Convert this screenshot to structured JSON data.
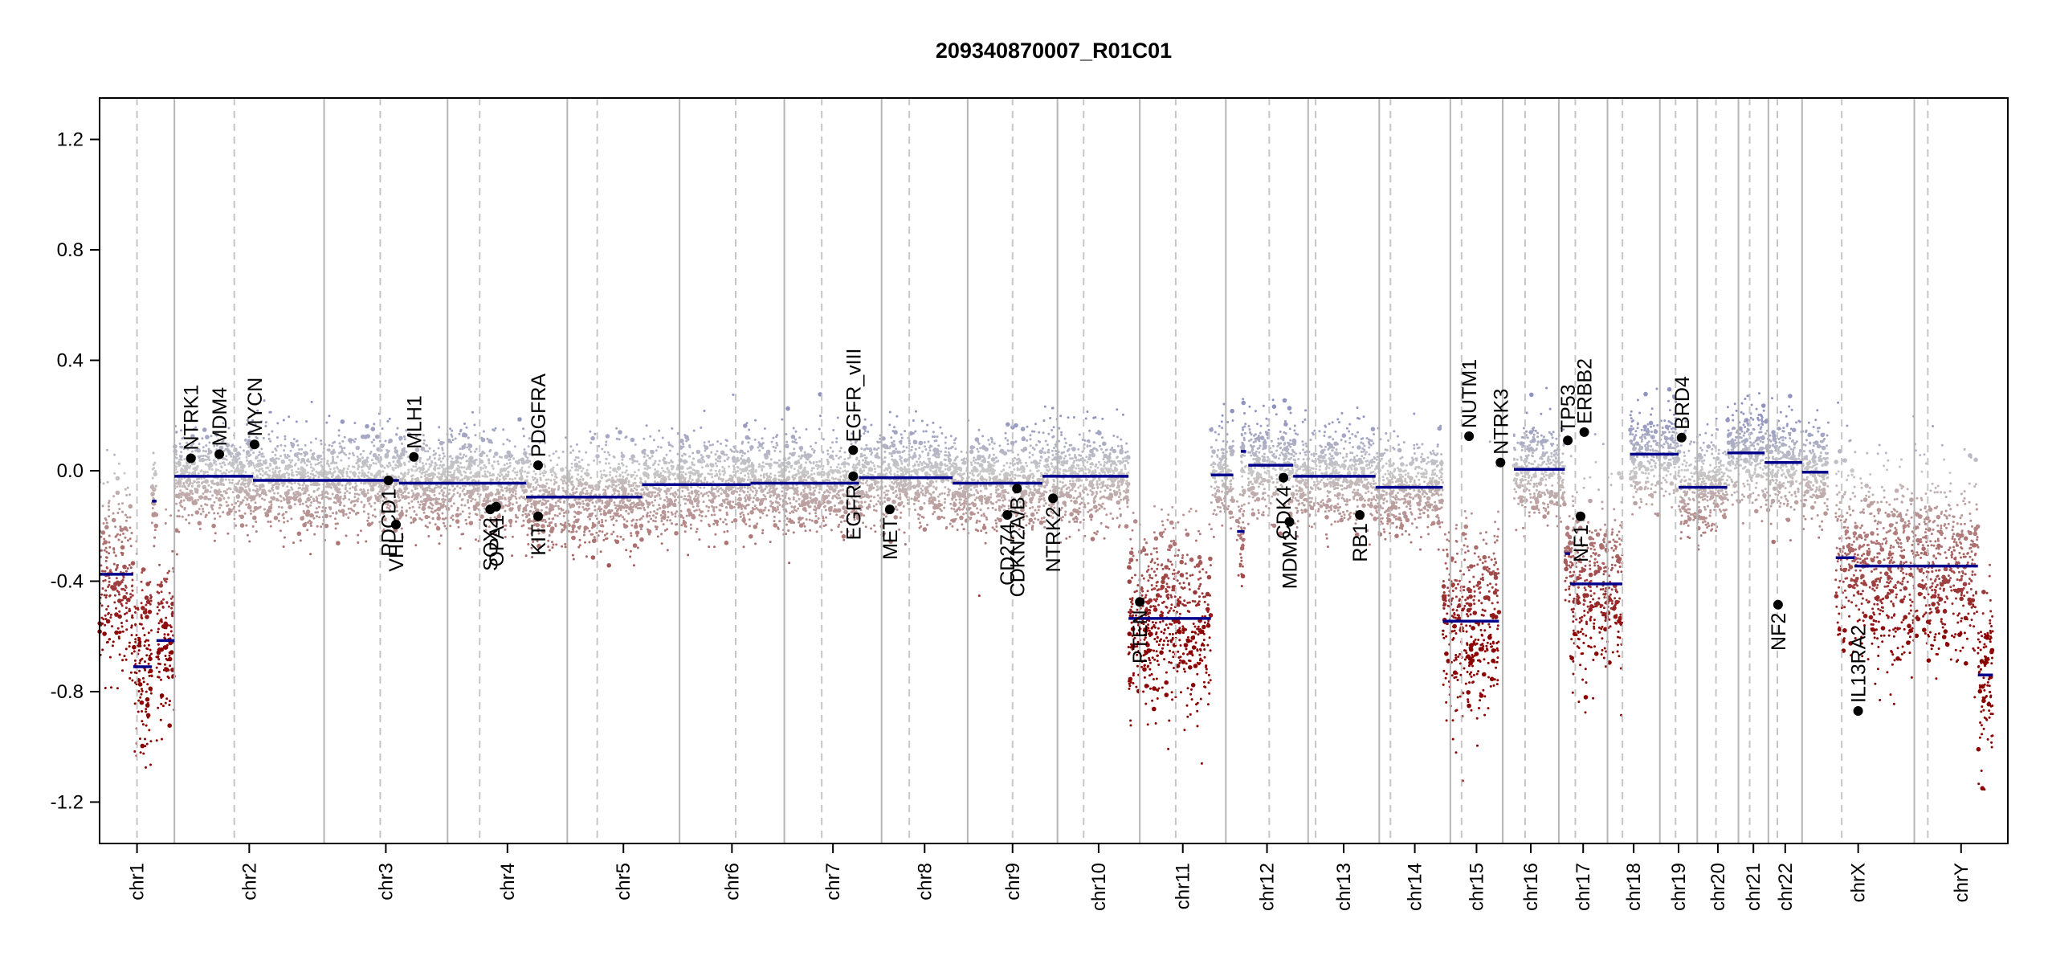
{
  "chart_data": {
    "type": "scatter",
    "title": "209340870007_R01C01",
    "xlabel": "",
    "ylabel": "",
    "ylim": [
      -1.35,
      1.35
    ],
    "yticks": [
      {
        "value": 1.2,
        "label": "1.2"
      },
      {
        "value": 0.8,
        "label": "0.8"
      },
      {
        "value": 0.4,
        "label": "0.4"
      },
      {
        "value": 0.0,
        "label": "0.0"
      },
      {
        "value": -0.4,
        "label": "-0.4"
      },
      {
        "value": -0.8,
        "label": "-0.8"
      },
      {
        "value": -1.2,
        "label": "-1.2"
      }
    ],
    "grid": false,
    "colors": {
      "segment": "#00008b",
      "gain": "#8f93c0",
      "neutral": "#c8c8c8",
      "loss": "#8b0000",
      "gene_point": "#000000",
      "chromosome_boundary": "#b5b5b5",
      "centromere": "#c6c6c6"
    },
    "chromosomes": [
      {
        "name": "chr1",
        "start": 0,
        "end": 10,
        "centromere": 5.0
      },
      {
        "name": "chr2",
        "start": 10,
        "end": 30,
        "centromere": 18.0
      },
      {
        "name": "chr3",
        "start": 30,
        "end": 46.5,
        "centromere": 37.5
      },
      {
        "name": "chr4",
        "start": 46.5,
        "end": 62.5,
        "centromere": 50.8
      },
      {
        "name": "chr5",
        "start": 62.5,
        "end": 77.5,
        "centromere": 66.5
      },
      {
        "name": "chr6",
        "start": 77.5,
        "end": 91.5,
        "centromere": 85.0
      },
      {
        "name": "chr7",
        "start": 91.5,
        "end": 104.5,
        "centromere": 96.5
      },
      {
        "name": "chr8",
        "start": 104.5,
        "end": 116,
        "centromere": 108.2
      },
      {
        "name": "chr9",
        "start": 116,
        "end": 128,
        "centromere": 122.0
      },
      {
        "name": "chr10",
        "start": 128,
        "end": 139,
        "centromere": 131.5
      },
      {
        "name": "chr11",
        "start": 139,
        "end": 150.5,
        "centromere": 143.8
      },
      {
        "name": "chr12",
        "start": 150.5,
        "end": 161.5,
        "centromere": 156.3
      },
      {
        "name": "chr13",
        "start": 161.5,
        "end": 171,
        "centromere": 162.5
      },
      {
        "name": "chr14",
        "start": 171,
        "end": 180.5,
        "centromere": 172.5
      },
      {
        "name": "chr15",
        "start": 180.5,
        "end": 187.5,
        "centromere": 182.0
      },
      {
        "name": "chr16",
        "start": 187.5,
        "end": 195,
        "centromere": 190.5
      },
      {
        "name": "chr17",
        "start": 195,
        "end": 201.5,
        "centromere": 197.2
      },
      {
        "name": "chr18",
        "start": 201.5,
        "end": 208.5,
        "centromere": 203.5
      },
      {
        "name": "chr19",
        "start": 208.5,
        "end": 213.5,
        "centromere": 210.6
      },
      {
        "name": "chr20",
        "start": 213.5,
        "end": 219,
        "centromere": 216.0
      },
      {
        "name": "chr21",
        "start": 219,
        "end": 223,
        "centromere": 220.5
      },
      {
        "name": "chr22",
        "start": 223,
        "end": 227.5,
        "centromere": 224.2
      },
      {
        "name": "chrX",
        "start": 227.5,
        "end": 242.5,
        "centromere": 232.8
      },
      {
        "name": "chrY",
        "start": 242.5,
        "end": 255,
        "centromere": 244.3
      }
    ],
    "segments": [
      {
        "x0": 0,
        "x1": 4.5,
        "y": -0.375
      },
      {
        "x0": 4.5,
        "x1": 7.0,
        "y": -0.71
      },
      {
        "x0": 7.0,
        "x1": 7.6,
        "y": -0.11
      },
      {
        "x0": 7.6,
        "x1": 10,
        "y": -0.615
      },
      {
        "x0": 10,
        "x1": 20.5,
        "y": -0.02
      },
      {
        "x0": 20.5,
        "x1": 40.0,
        "y": -0.035
      },
      {
        "x0": 40.0,
        "x1": 57.0,
        "y": -0.045
      },
      {
        "x0": 57.0,
        "x1": 72.5,
        "y": -0.095
      },
      {
        "x0": 72.5,
        "x1": 87.0,
        "y": -0.05
      },
      {
        "x0": 87.0,
        "x1": 101.5,
        "y": -0.045
      },
      {
        "x0": 101.5,
        "x1": 114.0,
        "y": -0.025
      },
      {
        "x0": 114.0,
        "x1": 126.0,
        "y": -0.045
      },
      {
        "x0": 126.0,
        "x1": 137.5,
        "y": -0.02
      },
      {
        "x0": 137.5,
        "x1": 148.5,
        "y": -0.535
      },
      {
        "x0": 148.5,
        "x1": 151.5,
        "y": -0.015
      },
      {
        "x0": 152.5,
        "x1": 153.2,
        "y": 0.07
      },
      {
        "x0": 152.0,
        "x1": 153.0,
        "y": -0.22
      },
      {
        "x0": 153.5,
        "x1": 159.5,
        "y": 0.02
      },
      {
        "x0": 159.5,
        "x1": 170.5,
        "y": -0.02
      },
      {
        "x0": 170.5,
        "x1": 179.5,
        "y": -0.06
      },
      {
        "x0": 179.5,
        "x1": 187.0,
        "y": -0.545
      },
      {
        "x0": 189.0,
        "x1": 195.8,
        "y": 0.005
      },
      {
        "x0": 195.8,
        "x1": 196.5,
        "y": -0.3
      },
      {
        "x0": 196.5,
        "x1": 203.5,
        "y": -0.41
      },
      {
        "x0": 204.5,
        "x1": 211.0,
        "y": 0.06
      },
      {
        "x0": 211.0,
        "x1": 217.5,
        "y": -0.06
      },
      {
        "x0": 217.5,
        "x1": 222.5,
        "y": 0.065
      },
      {
        "x0": 222.5,
        "x1": 227.5,
        "y": 0.03
      },
      {
        "x0": 227.5,
        "x1": 231.0,
        "y": -0.005
      },
      {
        "x0": 232.0,
        "x1": 234.5,
        "y": -0.315
      },
      {
        "x0": 234.5,
        "x1": 251.0,
        "y": -0.345
      },
      {
        "x0": 251.0,
        "x1": 253.0,
        "y": -0.74
      }
    ],
    "genes": [
      {
        "name": "NTRK1",
        "x": 12.2,
        "y": 0.045,
        "label_pos": "above"
      },
      {
        "name": "MDM4",
        "x": 16.0,
        "y": 0.06,
        "label_pos": "above"
      },
      {
        "name": "MYCN",
        "x": 20.7,
        "y": 0.095,
        "label_pos": "above"
      },
      {
        "name": "MLH1",
        "x": 42.0,
        "y": 0.05,
        "label_pos": "above"
      },
      {
        "name": "PDCD1",
        "x": 38.6,
        "y": -0.035,
        "label_pos": "below"
      },
      {
        "name": "VHL",
        "x": 39.6,
        "y": -0.195,
        "label_pos": "below"
      },
      {
        "name": "SOX2",
        "x": 52.2,
        "y": -0.14,
        "label_pos": "below"
      },
      {
        "name": "OPA1",
        "x": 53.0,
        "y": -0.13,
        "label_pos": "below"
      },
      {
        "name": "PDGFRA",
        "x": 58.6,
        "y": 0.02,
        "label_pos": "above"
      },
      {
        "name": "KIT",
        "x": 58.6,
        "y": -0.165,
        "label_pos": "below"
      },
      {
        "name": "EGFR_vIII",
        "x": 100.7,
        "y": 0.075,
        "label_pos": "above"
      },
      {
        "name": "EGFR",
        "x": 100.7,
        "y": -0.02,
        "label_pos": "below"
      },
      {
        "name": "MET",
        "x": 105.6,
        "y": -0.14,
        "label_pos": "below"
      },
      {
        "name": "CD274",
        "x": 121.3,
        "y": -0.16,
        "label_pos": "below"
      },
      {
        "name": "CDKN2A/B",
        "x": 122.6,
        "y": -0.065,
        "label_pos": "below"
      },
      {
        "name": "NTRK2",
        "x": 127.4,
        "y": -0.1,
        "label_pos": "below"
      },
      {
        "name": "PTEN",
        "x": 139.0,
        "y": -0.475,
        "label_pos": "below"
      },
      {
        "name": "CDK4",
        "x": 158.2,
        "y": -0.025,
        "label_pos": "below"
      },
      {
        "name": "MDM2",
        "x": 159.0,
        "y": -0.185,
        "label_pos": "below"
      },
      {
        "name": "RB1",
        "x": 168.4,
        "y": -0.16,
        "label_pos": "below"
      },
      {
        "name": "NUTM1",
        "x": 183.0,
        "y": 0.125,
        "label_pos": "above"
      },
      {
        "name": "NTRK3",
        "x": 187.2,
        "y": 0.03,
        "label_pos": "above"
      },
      {
        "name": "TP53",
        "x": 196.2,
        "y": 0.11,
        "label_pos": "above"
      },
      {
        "name": "ERBB2",
        "x": 198.4,
        "y": 0.14,
        "label_pos": "above"
      },
      {
        "name": "NF1",
        "x": 197.9,
        "y": -0.165,
        "label_pos": "below"
      },
      {
        "name": "BRD4",
        "x": 211.4,
        "y": 0.12,
        "label_pos": "above"
      },
      {
        "name": "NF2",
        "x": 224.3,
        "y": -0.485,
        "label_pos": "below"
      },
      {
        "name": "IL13RA2",
        "x": 235.0,
        "y": -0.87,
        "label_pos": "above"
      }
    ]
  }
}
